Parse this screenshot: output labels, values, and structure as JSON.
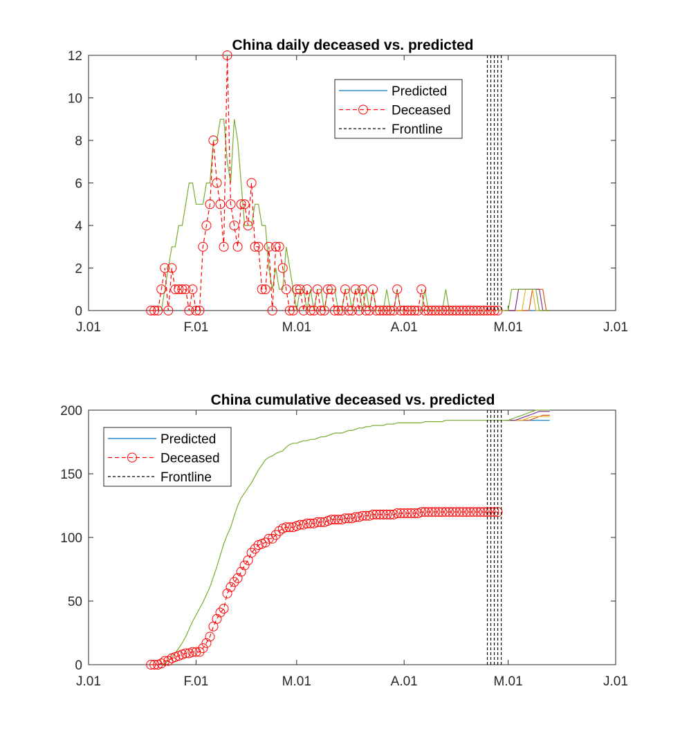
{
  "colors": {
    "predicted": "#0072BD",
    "deceased": "#FF0000",
    "frontline": "#000000",
    "fit": "#77AC30",
    "forecasts": [
      "#0072BD",
      "#77AC30",
      "#7E2F8E",
      "#EDB120",
      "#D95319"
    ]
  },
  "chart_data": [
    {
      "type": "line",
      "title": "China daily deceased vs. predicted",
      "mode": "daily",
      "xlim": [
        "01-01",
        "06-01"
      ],
      "ylim": [
        0,
        12
      ],
      "xticks": [
        {
          "date": "01-01",
          "label": "J.01"
        },
        {
          "date": "02-01",
          "label": "F.01"
        },
        {
          "date": "03-01",
          "label": "M.01"
        },
        {
          "date": "04-01",
          "label": "A.01"
        },
        {
          "date": "05-01",
          "label": "M.01"
        },
        {
          "date": "06-01",
          "label": "J.01"
        }
      ],
      "yticks": [
        0,
        2,
        4,
        6,
        8,
        10,
        12
      ],
      "legend": {
        "position": "top-right-center",
        "entries": [
          "Predicted",
          "Deceased",
          "Frontline"
        ]
      }
    },
    {
      "type": "line",
      "title": "China cumulative deceased vs. predicted",
      "mode": "cumulative",
      "xlim": [
        "01-01",
        "06-01"
      ],
      "ylim": [
        0,
        200
      ],
      "xticks": [
        {
          "date": "01-01",
          "label": "J.01"
        },
        {
          "date": "02-01",
          "label": "F.01"
        },
        {
          "date": "03-01",
          "label": "M.01"
        },
        {
          "date": "04-01",
          "label": "A.01"
        },
        {
          "date": "05-01",
          "label": "M.01"
        },
        {
          "date": "06-01",
          "label": "J.01"
        }
      ],
      "yticks": [
        0,
        50,
        100,
        150,
        200
      ],
      "legend": {
        "position": "top-left",
        "entries": [
          "Predicted",
          "Deceased",
          "Frontline"
        ]
      }
    }
  ],
  "series": {
    "dates": [
      "01-19",
      "01-20",
      "01-21",
      "01-22",
      "01-23",
      "01-24",
      "01-25",
      "01-26",
      "01-27",
      "01-28",
      "01-29",
      "01-30",
      "01-31",
      "02-01",
      "02-02",
      "02-03",
      "02-04",
      "02-05",
      "02-06",
      "02-07",
      "02-08",
      "02-09",
      "02-10",
      "02-11",
      "02-12",
      "02-13",
      "02-14",
      "02-15",
      "02-16",
      "02-17",
      "02-18",
      "02-19",
      "02-20",
      "02-21",
      "02-22",
      "02-23",
      "02-24",
      "02-25",
      "02-26",
      "02-27",
      "02-28",
      "02-29",
      "03-01",
      "03-02",
      "03-03",
      "03-04",
      "03-05",
      "03-06",
      "03-07",
      "03-08",
      "03-09",
      "03-10",
      "03-11",
      "03-12",
      "03-13",
      "03-14",
      "03-15",
      "03-16",
      "03-17",
      "03-18",
      "03-19",
      "03-20",
      "03-21",
      "03-22",
      "03-23",
      "03-24",
      "03-25",
      "03-26",
      "03-27",
      "03-28",
      "03-29",
      "03-30",
      "03-31",
      "04-01",
      "04-02",
      "04-03",
      "04-04",
      "04-05",
      "04-06",
      "04-07",
      "04-08",
      "04-09",
      "04-10",
      "04-11",
      "04-12",
      "04-13",
      "04-14",
      "04-15",
      "04-16",
      "04-17",
      "04-18",
      "04-19",
      "04-20",
      "04-21",
      "04-22",
      "04-23",
      "04-24",
      "04-25",
      "04-26",
      "04-27",
      "04-28",
      "04-29",
      "04-30"
    ],
    "deceased": [
      0,
      0,
      0,
      1,
      2,
      0,
      2,
      1,
      1,
      1,
      1,
      0,
      1,
      0,
      0,
      3,
      4,
      5,
      8,
      6,
      5,
      3,
      12,
      5,
      4,
      3,
      5,
      5,
      4,
      6,
      3,
      3,
      1,
      1,
      3,
      0,
      3,
      3,
      2,
      1,
      0,
      0,
      1,
      1,
      0,
      1,
      0,
      0,
      1,
      0,
      0,
      1,
      1,
      0,
      0,
      0,
      1,
      0,
      0,
      1,
      0,
      1,
      0,
      0,
      1,
      0,
      0,
      0,
      0,
      0,
      0,
      1,
      0,
      0,
      0,
      0,
      0,
      0,
      1,
      0,
      0,
      0,
      0,
      0,
      0,
      0,
      0,
      0,
      0,
      0,
      0,
      0,
      0,
      0,
      0,
      0,
      0,
      0,
      0,
      0,
      0,
      null,
      null
    ],
    "predicted_fit": [
      null,
      null,
      null,
      0,
      1,
      2,
      3,
      3,
      4,
      4,
      5,
      6,
      6,
      5,
      5,
      5,
      6,
      6,
      8,
      8,
      9,
      9,
      7,
      6,
      9,
      8,
      6,
      4,
      4,
      4,
      5,
      5,
      4,
      4,
      2,
      1,
      2,
      1,
      1,
      3,
      2,
      1,
      0,
      1,
      1,
      0,
      1,
      0,
      1,
      1,
      0,
      1,
      1,
      1,
      0,
      0,
      1,
      1,
      0,
      1,
      1,
      0,
      1,
      0,
      1,
      0,
      0,
      0,
      1,
      0,
      0,
      1,
      0,
      0,
      0,
      0,
      0,
      0,
      0,
      1,
      0,
      0,
      0,
      0,
      0,
      1,
      0,
      0,
      0,
      0,
      0,
      0,
      0,
      0,
      0,
      0,
      0,
      0,
      0,
      0,
      0,
      0,
      0
    ],
    "forecast_dates": [
      "05-01",
      "05-02",
      "05-03",
      "05-04",
      "05-05",
      "05-06",
      "05-07",
      "05-08",
      "05-09",
      "05-10",
      "05-11",
      "05-12",
      "05-13"
    ],
    "forecasts": [
      [
        0,
        0,
        0,
        0,
        0,
        0,
        0,
        0,
        0,
        0,
        0,
        0,
        0
      ],
      [
        0,
        1,
        1,
        1,
        1,
        1,
        1,
        1,
        1,
        0,
        0,
        0,
        0
      ],
      [
        0,
        0,
        0,
        1,
        1,
        1,
        1,
        1,
        1,
        1,
        0,
        0,
        0
      ],
      [
        0,
        0,
        0,
        0,
        0,
        1,
        1,
        1,
        0,
        0,
        0,
        0,
        0
      ],
      [
        0,
        0,
        0,
        0,
        0,
        0,
        0,
        1,
        1,
        1,
        1,
        0,
        0
      ]
    ],
    "frontlines": [
      "04-25",
      "04-26",
      "04-27",
      "04-28",
      "04-29"
    ]
  }
}
